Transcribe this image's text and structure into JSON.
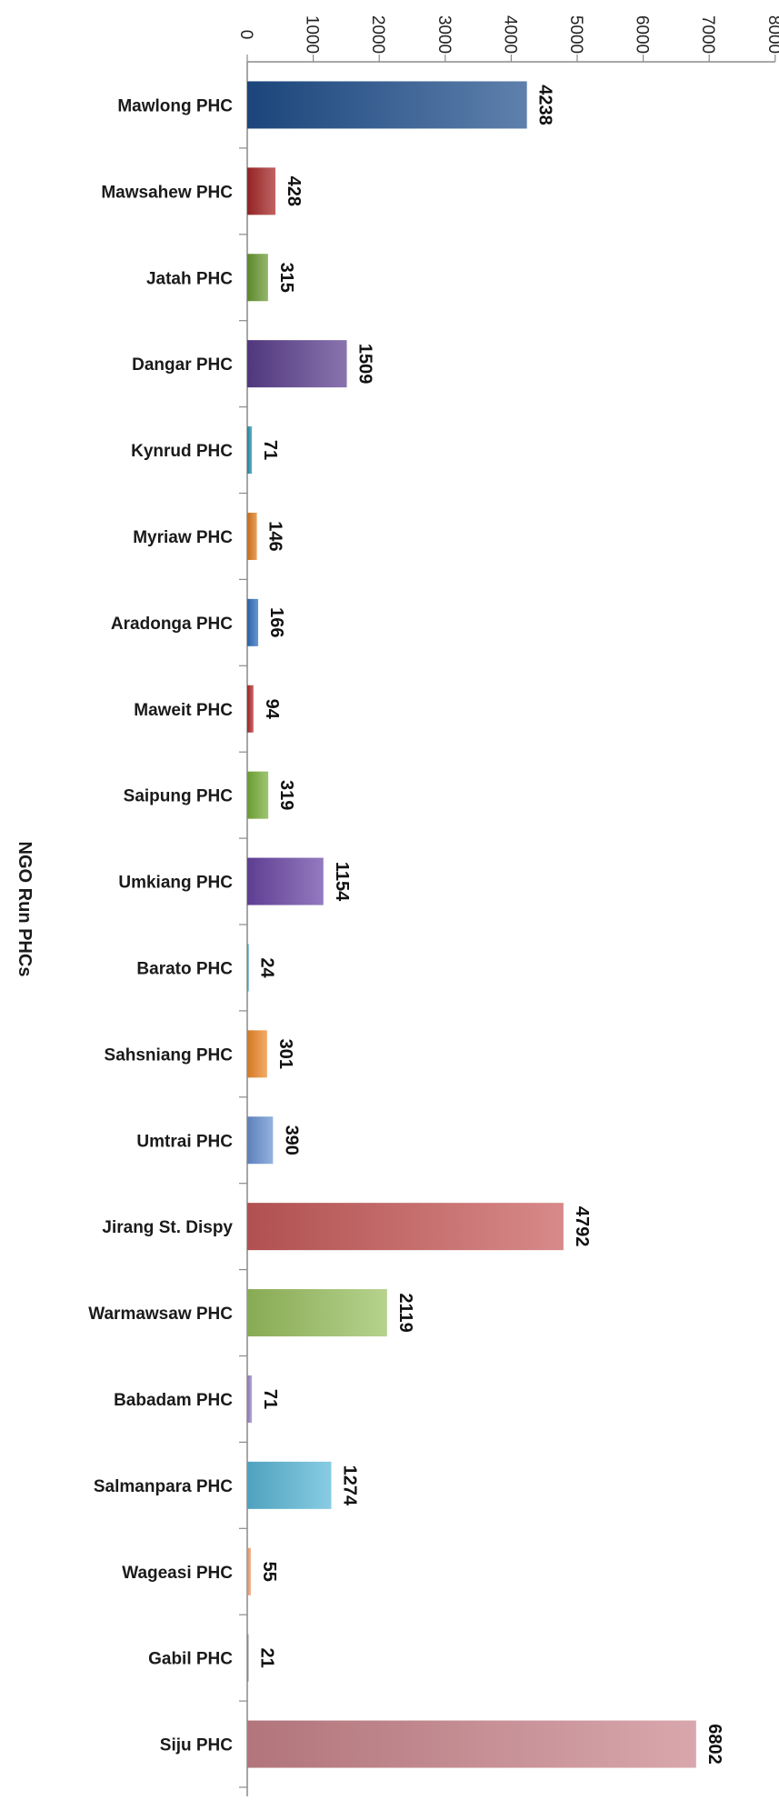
{
  "chart_data": {
    "type": "bar",
    "orientation": "horizontal",
    "title": "",
    "xlabel": "",
    "ylabel": "NGO Run PHCs",
    "xlim": [
      0,
      8000
    ],
    "xticks": [
      0,
      1000,
      2000,
      3000,
      4000,
      5000,
      6000,
      7000,
      8000
    ],
    "grid": false,
    "legend": "none",
    "categories": [
      "Mawlong PHC",
      "Mawsahew PHC",
      "Jatah PHC",
      "Dangar PHC",
      "Kynrud PHC",
      "Myriaw PHC",
      "Aradonga  PHC",
      "Maweit PHC",
      "Saipung PHC",
      "Umkiang PHC",
      "Barato PHC",
      "Sahsniang PHC",
      "Umtrai PHC",
      "Jirang St. Dispy",
      "Warmawsaw PHC",
      "Babadam PHC",
      "Salmanpara PHC",
      "Wageasi PHC",
      "Gabil PHC",
      "Siju PHC"
    ],
    "values": [
      4238,
      428,
      315,
      1509,
      71,
      146,
      166,
      94,
      319,
      1154,
      24,
      301,
      390,
      4792,
      2119,
      71,
      1274,
      55,
      21,
      6802
    ],
    "colors": [
      "#1f4e8c",
      "#a82828",
      "#6a9a32",
      "#5b3e8e",
      "#2a93b0",
      "#e07b1f",
      "#2e6fbe",
      "#b22a2a",
      "#7ab03a",
      "#6b46a6",
      "#3aa5c0",
      "#ef8a2a",
      "#6a92d4",
      "#c95b5b",
      "#9ac160",
      "#9a87c8",
      "#5ab8d8",
      "#f2a070",
      "#888888",
      "#c9858c"
    ]
  }
}
